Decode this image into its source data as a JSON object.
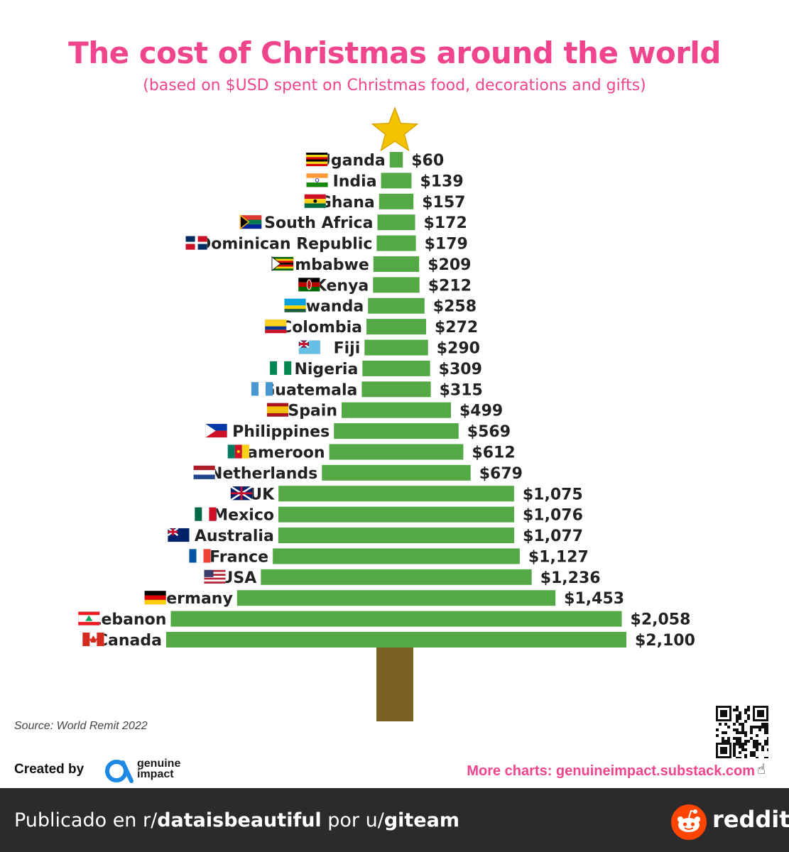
{
  "title": "The cost of Christmas around the world",
  "subtitle": "(based on $USD spent on Christmas food, decorations and gifts)",
  "source": "Source: World Remit 2022",
  "created_by": "Created by",
  "brand": {
    "line1": "genuine",
    "line2": "impact"
  },
  "more_charts": "More charts: genuineimpact.substack.com",
  "footer": {
    "prefix": "Publicado en r/",
    "subreddit": "dataisbeautiful",
    "middle": " por u/",
    "user": "giteam",
    "logo_text": "reddit"
  },
  "colors": {
    "title": "#f0448d",
    "bar": "#54a846",
    "trunk": "#7b6124",
    "star": "#f5c400",
    "footer_bg": "#2b2b2b",
    "reddit_orange": "#ff4500"
  },
  "icons": [
    "star-icon",
    "flag-icon",
    "qr-code-icon",
    "genuine-impact-logo",
    "pointing-hand-icon",
    "reddit-logo-icon"
  ],
  "chart_data": {
    "type": "bar",
    "orientation": "horizontal-centered",
    "categories": [
      "Uganda",
      "India",
      "Ghana",
      "South Africa",
      "Dominican Republic",
      "Zimbabwe",
      "Kenya",
      "Rwanda",
      "Colombia",
      "Fiji",
      "Nigeria",
      "Guatemala",
      "Spain",
      "Philippines",
      "Cameroon",
      "Netherlands",
      "UK",
      "Mexico",
      "Australia",
      "France",
      "USA",
      "Germany",
      "Lebanon",
      "Canada"
    ],
    "values": [
      60,
      139,
      157,
      172,
      179,
      209,
      212,
      258,
      272,
      290,
      309,
      315,
      499,
      569,
      612,
      679,
      1075,
      1076,
      1077,
      1127,
      1236,
      1453,
      2058,
      2100
    ],
    "value_labels": [
      "$60",
      "$139",
      "$157",
      "$172",
      "$179",
      "$209",
      "$212",
      "$258",
      "$272",
      "$290",
      "$309",
      "$315",
      "$499",
      "$569",
      "$612",
      "$679",
      "$1,075",
      "$1,076",
      "$1,077",
      "$1,127",
      "$1,236",
      "$1,453",
      "$2,058",
      "$2,100"
    ],
    "grid": false,
    "legend": "none"
  }
}
